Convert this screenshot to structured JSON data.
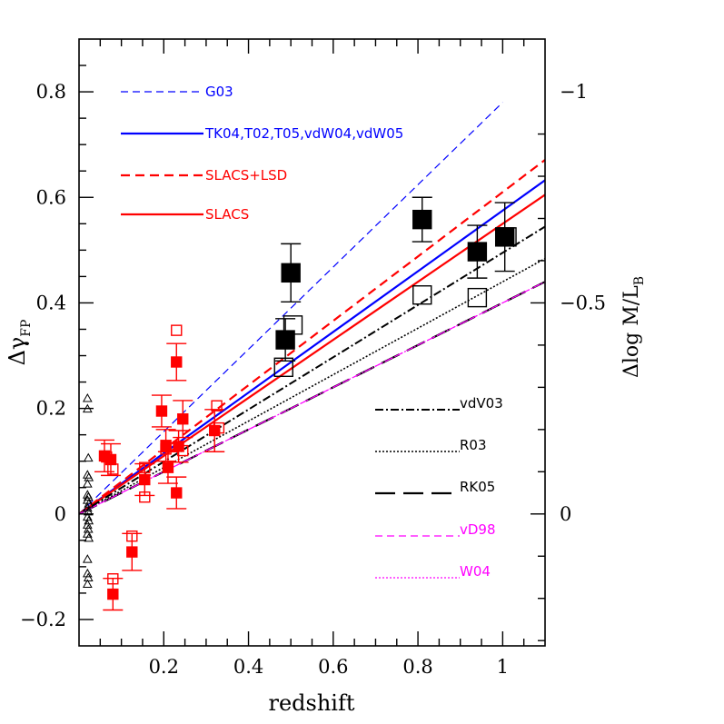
{
  "chart_data": {
    "type": "scatter",
    "xlabel": "redshift",
    "ylabel": "Δγ",
    "ylabel_sub": "FP",
    "y2label": "Δlog M/L",
    "y2label_sub": "B",
    "xlim": [
      0,
      1.1
    ],
    "ylim": [
      -0.25,
      0.9
    ],
    "x_ticks": [
      {
        "v": 0.2,
        "label": "0.2"
      },
      {
        "v": 0.4,
        "label": "0.4"
      },
      {
        "v": 0.6,
        "label": "0.6"
      },
      {
        "v": 0.8,
        "label": "0.8"
      },
      {
        "v": 1.0,
        "label": "1"
      }
    ],
    "y_ticks": [
      {
        "v": -0.2,
        "label": "−0.2"
      },
      {
        "v": 0.0,
        "label": "0"
      },
      {
        "v": 0.2,
        "label": "0.2"
      },
      {
        "v": 0.4,
        "label": "0.4"
      },
      {
        "v": 0.6,
        "label": "0.6"
      },
      {
        "v": 0.8,
        "label": "0.8"
      }
    ],
    "y2_ticks": [
      {
        "v": 0.0,
        "label": "0"
      },
      {
        "v": 0.4,
        "label": "−0.5"
      },
      {
        "v": 0.8,
        "label": "−1"
      }
    ],
    "colors": {
      "black": "#000000",
      "red": "#ff0000",
      "blue": "#0000ff",
      "magenta": "#ff00ff"
    },
    "fit_lines": [
      {
        "name": "G03",
        "color": "#0000ff",
        "dash": "8,5",
        "width": 1.2,
        "slope": 0.78,
        "x_end": 1.0
      },
      {
        "name": "TK04,T02,T05,vdW04,vdW05",
        "color": "#0000ff",
        "dash": "",
        "width": 2.2,
        "slope": 0.575,
        "x_end": 1.1
      },
      {
        "name": "SLACS+LSD",
        "color": "#ff0000",
        "dash": "10,6",
        "width": 2.2,
        "slope": 0.61,
        "x_end": 1.1
      },
      {
        "name": "SLACS",
        "color": "#ff0000",
        "dash": "",
        "width": 2.2,
        "slope": 0.55,
        "x_end": 1.1
      },
      {
        "name": "vdV03",
        "color": "#000000",
        "dash": "9,3,2,3",
        "width": 2.0,
        "slope": 0.495,
        "x_end": 1.1
      },
      {
        "name": "R03",
        "color": "#000000",
        "dash": "2,2",
        "width": 1.6,
        "slope": 0.44,
        "x_end": 1.1
      },
      {
        "name": "RK05",
        "color": "#000000",
        "dash": "22,9",
        "width": 2.2,
        "slope": 0.4,
        "x_end": 1.1
      },
      {
        "name": "vD98",
        "color": "#ff00ff",
        "dash": "8,5",
        "width": 1.2,
        "slope": 0.4,
        "x_end": 1.1
      },
      {
        "name": "W04",
        "color": "#ff00ff",
        "dash": "2,2",
        "width": 1.2,
        "slope": 0.4,
        "x_end": 1.1
      }
    ],
    "legend_top": [
      {
        "label": "G03",
        "color": "#0000ff",
        "dash": "8,5",
        "width": 1.2
      },
      {
        "label": "TK04,T02,T05,vdW04,vdW05",
        "color": "#0000ff",
        "dash": "",
        "width": 2.2
      },
      {
        "label": "SLACS+LSD",
        "color": "#ff0000",
        "dash": "10,6",
        "width": 2.2
      },
      {
        "label": "SLACS",
        "color": "#ff0000",
        "dash": "",
        "width": 2.2
      }
    ],
    "legend_bottom": [
      {
        "label": "vdV03",
        "color": "#000000",
        "text_color": "#000000",
        "dash": "9,3,2,3",
        "width": 2.0
      },
      {
        "label": "R03",
        "color": "#000000",
        "text_color": "#000000",
        "dash": "2,2",
        "width": 1.6
      },
      {
        "label": "RK05",
        "color": "#000000",
        "text_color": "#000000",
        "dash": "22,9",
        "width": 2.2
      },
      {
        "label": "vD98",
        "color": "#ff00ff",
        "text_color": "#ff00ff",
        "dash": "8,5",
        "width": 1.2
      },
      {
        "label": "W04",
        "color": "#ff00ff",
        "text_color": "#ff00ff",
        "dash": "2,2",
        "width": 1.2
      }
    ],
    "black_filled": [
      {
        "x": 0.487,
        "y": 0.33,
        "err": 0.04
      },
      {
        "x": 0.5,
        "y": 0.457,
        "err": 0.055
      },
      {
        "x": 0.81,
        "y": 0.558,
        "err": 0.042
      },
      {
        "x": 0.94,
        "y": 0.497,
        "err": 0.05
      },
      {
        "x": 1.005,
        "y": 0.525,
        "err": 0.065
      }
    ],
    "black_open": [
      {
        "x": 0.483,
        "y": 0.278
      },
      {
        "x": 0.505,
        "y": 0.358
      },
      {
        "x": 0.81,
        "y": 0.415
      },
      {
        "x": 0.94,
        "y": 0.41
      },
      {
        "x": 1.01,
        "y": 0.525
      }
    ],
    "red_filled": [
      {
        "x": 0.06,
        "y": 0.11,
        "err": 0.03
      },
      {
        "x": 0.075,
        "y": 0.103,
        "err": 0.03
      },
      {
        "x": 0.08,
        "y": -0.152,
        "err": 0.03
      },
      {
        "x": 0.125,
        "y": -0.072,
        "err": 0.035
      },
      {
        "x": 0.155,
        "y": 0.065,
        "err": 0.03
      },
      {
        "x": 0.195,
        "y": 0.195,
        "err": 0.03
      },
      {
        "x": 0.205,
        "y": 0.13,
        "err": 0.03
      },
      {
        "x": 0.21,
        "y": 0.088,
        "err": 0.03
      },
      {
        "x": 0.23,
        "y": 0.04,
        "err": 0.03
      },
      {
        "x": 0.23,
        "y": 0.288,
        "err": 0.035
      },
      {
        "x": 0.235,
        "y": 0.128,
        "err": 0.03
      },
      {
        "x": 0.245,
        "y": 0.18,
        "err": 0.035
      },
      {
        "x": 0.32,
        "y": 0.158,
        "err": 0.04
      }
    ],
    "red_open": [
      {
        "x": 0.065,
        "y": 0.108
      },
      {
        "x": 0.08,
        "y": 0.085
      },
      {
        "x": 0.08,
        "y": -0.123
      },
      {
        "x": 0.125,
        "y": -0.042
      },
      {
        "x": 0.155,
        "y": 0.032
      },
      {
        "x": 0.155,
        "y": 0.088
      },
      {
        "x": 0.205,
        "y": 0.123
      },
      {
        "x": 0.23,
        "y": 0.348
      },
      {
        "x": 0.245,
        "y": 0.12
      },
      {
        "x": 0.325,
        "y": 0.205
      },
      {
        "x": 0.33,
        "y": 0.163
      }
    ],
    "triangles": [
      {
        "x": 0.02,
        "y": 0.22
      },
      {
        "x": 0.02,
        "y": 0.2
      },
      {
        "x": 0.022,
        "y": 0.107
      },
      {
        "x": 0.02,
        "y": 0.075
      },
      {
        "x": 0.023,
        "y": 0.07
      },
      {
        "x": 0.02,
        "y": 0.058
      },
      {
        "x": 0.02,
        "y": 0.037
      },
      {
        "x": 0.022,
        "y": 0.033
      },
      {
        "x": 0.02,
        "y": 0.027
      },
      {
        "x": 0.023,
        "y": 0.02
      },
      {
        "x": 0.02,
        "y": 0.012
      },
      {
        "x": 0.022,
        "y": 0.005
      },
      {
        "x": 0.02,
        "y": -0.005
      },
      {
        "x": 0.023,
        "y": -0.012
      },
      {
        "x": 0.02,
        "y": -0.02
      },
      {
        "x": 0.022,
        "y": -0.028
      },
      {
        "x": 0.02,
        "y": -0.037
      },
      {
        "x": 0.023,
        "y": -0.045
      },
      {
        "x": 0.02,
        "y": -0.085
      },
      {
        "x": 0.02,
        "y": -0.112
      },
      {
        "x": 0.022,
        "y": -0.12
      },
      {
        "x": 0.02,
        "y": -0.132
      }
    ]
  }
}
